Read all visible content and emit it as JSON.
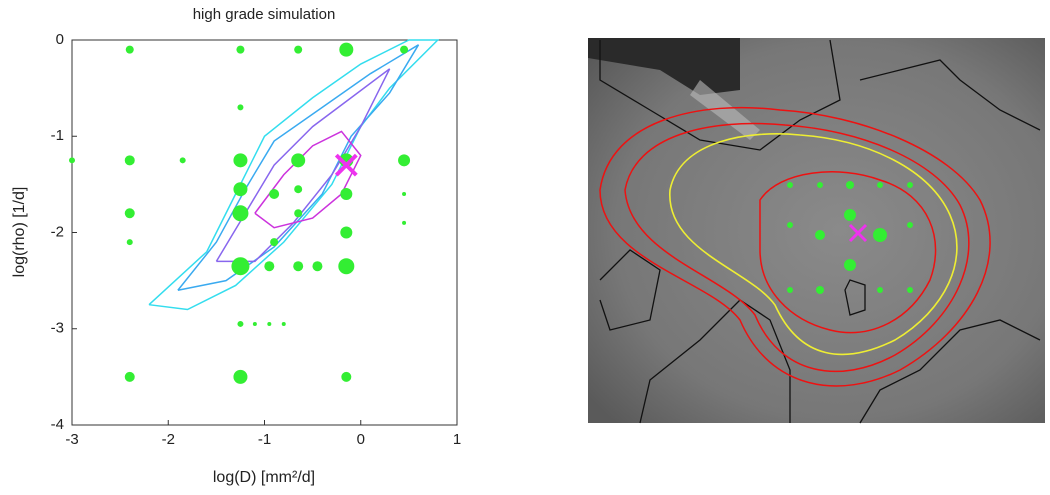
{
  "chart_data": {
    "type": "scatter",
    "title": "high grade simulation",
    "xlabel": "log(D) [mm²/d]",
    "ylabel": "log(rho) [1/d]",
    "xlim": [
      -3,
      1
    ],
    "ylim": [
      -4,
      0
    ],
    "xticks": [
      -3,
      -2,
      -1,
      0,
      1
    ],
    "yticks": [
      -4,
      -3,
      -2,
      -1,
      0
    ],
    "contours": [
      {
        "color": "#33ddee",
        "x": [
          -2.2,
          -1.6,
          -1.3,
          -1.0,
          -0.5,
          0.0,
          0.5,
          0.8,
          0.3,
          0.0,
          -0.3,
          -0.8,
          -1.3,
          -1.8,
          -2.2
        ],
        "y": [
          -2.75,
          -2.2,
          -1.6,
          -1.0,
          -0.6,
          -0.25,
          0.0,
          0.0,
          -0.5,
          -0.9,
          -1.5,
          -2.1,
          -2.55,
          -2.8,
          -2.75
        ]
      },
      {
        "color": "#3aaaf0",
        "x": [
          -1.9,
          -1.5,
          -1.2,
          -0.9,
          -0.4,
          0.1,
          0.6,
          0.3,
          -0.1,
          -0.4,
          -0.9,
          -1.4,
          -1.9
        ],
        "y": [
          -2.6,
          -2.1,
          -1.55,
          -1.05,
          -0.7,
          -0.35,
          -0.05,
          -0.55,
          -1.0,
          -1.6,
          -2.15,
          -2.5,
          -2.6
        ]
      },
      {
        "color": "#8866ee",
        "x": [
          -1.5,
          -1.2,
          -0.9,
          -0.5,
          -0.1,
          0.3,
          0.0,
          -0.3,
          -0.7,
          -1.1,
          -1.5
        ],
        "y": [
          -2.3,
          -1.8,
          -1.3,
          -0.9,
          -0.6,
          -0.3,
          -0.9,
          -1.4,
          -1.9,
          -2.3,
          -2.3
        ]
      },
      {
        "color": "#cc33dd",
        "x": [
          -1.1,
          -0.8,
          -0.5,
          -0.2,
          0.0,
          -0.2,
          -0.5,
          -0.9,
          -1.1
        ],
        "y": [
          -1.8,
          -1.4,
          -1.1,
          -0.95,
          -1.2,
          -1.6,
          -1.85,
          -1.95,
          -1.8
        ]
      }
    ],
    "points": {
      "color": "#33ee33",
      "x": [
        -2.4,
        -1.25,
        -0.65,
        -0.15,
        0.45,
        -1.25,
        -3.0,
        -2.4,
        -1.85,
        -1.25,
        -0.65,
        -0.15,
        0.45,
        -1.25,
        -0.65,
        -0.15,
        -2.4,
        -1.25,
        -1.25,
        -1.1,
        -0.95,
        -0.8,
        -2.4,
        -1.25,
        -0.15,
        -0.9,
        -0.65,
        -0.9,
        0.45,
        0.45,
        -2.4,
        -0.95,
        -0.45,
        -1.25,
        -0.15,
        -0.15,
        -0.65
      ],
      "y": [
        -0.1,
        -0.1,
        -0.1,
        -0.1,
        -0.1,
        -0.7,
        -1.25,
        -1.25,
        -1.25,
        -1.25,
        -1.25,
        -1.25,
        -1.25,
        -2.35,
        -2.35,
        -2.35,
        -1.8,
        -1.8,
        -2.95,
        -2.95,
        -2.95,
        -2.95,
        -3.5,
        -3.5,
        -3.5,
        -1.6,
        -1.8,
        -2.1,
        -1.6,
        -1.9,
        -2.1,
        -2.35,
        -2.35,
        -1.55,
        -1.6,
        -2.0,
        -1.55
      ],
      "sizes": [
        4,
        4,
        4,
        7,
        4,
        3,
        3,
        5,
        3,
        7,
        7,
        7,
        6,
        9,
        5,
        8,
        5,
        8,
        3,
        2,
        2,
        2,
        5,
        7,
        5,
        5,
        4,
        4,
        2,
        2,
        3,
        5,
        5,
        7,
        6,
        6,
        4
      ]
    },
    "best_fit": {
      "color": "#ee33ee",
      "x": [
        -0.15
      ],
      "y": [
        -1.3
      ]
    }
  }
}
